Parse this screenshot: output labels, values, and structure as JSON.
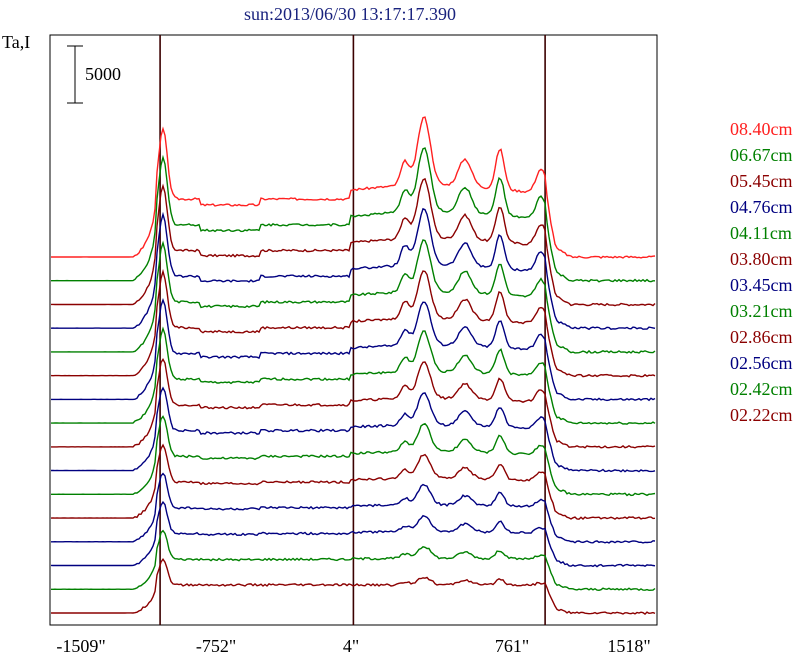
{
  "chart_data": {
    "type": "line",
    "title": "sun:2013/06/30 13:17:17.390",
    "ylabel": "Ta,I",
    "scale_bar_label": "5000",
    "x_ticks": [
      "-1509\"",
      "-752\"",
      "4\"",
      "761\"",
      "1518\""
    ],
    "x_range": [
      -1509,
      1518
    ],
    "vertical_markers": [
      -960,
      4,
      960
    ],
    "series": [
      {
        "name": "08.40cm",
        "color": "#ff2020"
      },
      {
        "name": "06.67cm",
        "color": "#008000"
      },
      {
        "name": "05.45cm",
        "color": "#8b0000"
      },
      {
        "name": "04.76cm",
        "color": "#000080"
      },
      {
        "name": "04.11cm",
        "color": "#008000"
      },
      {
        "name": "03.80cm",
        "color": "#8b0000"
      },
      {
        "name": "03.45cm",
        "color": "#000080"
      },
      {
        "name": "03.21cm",
        "color": "#008000"
      },
      {
        "name": "02.86cm",
        "color": "#8b0000"
      },
      {
        "name": "02.56cm",
        "color": "#000080"
      },
      {
        "name": "02.42cm",
        "color": "#008000"
      },
      {
        "name": "02.22cm",
        "color": "#8b0000"
      }
    ],
    "unlabeled_series_colors": [
      "#000080",
      "#000080",
      "#008000",
      "#8b0000"
    ],
    "grid": false
  }
}
